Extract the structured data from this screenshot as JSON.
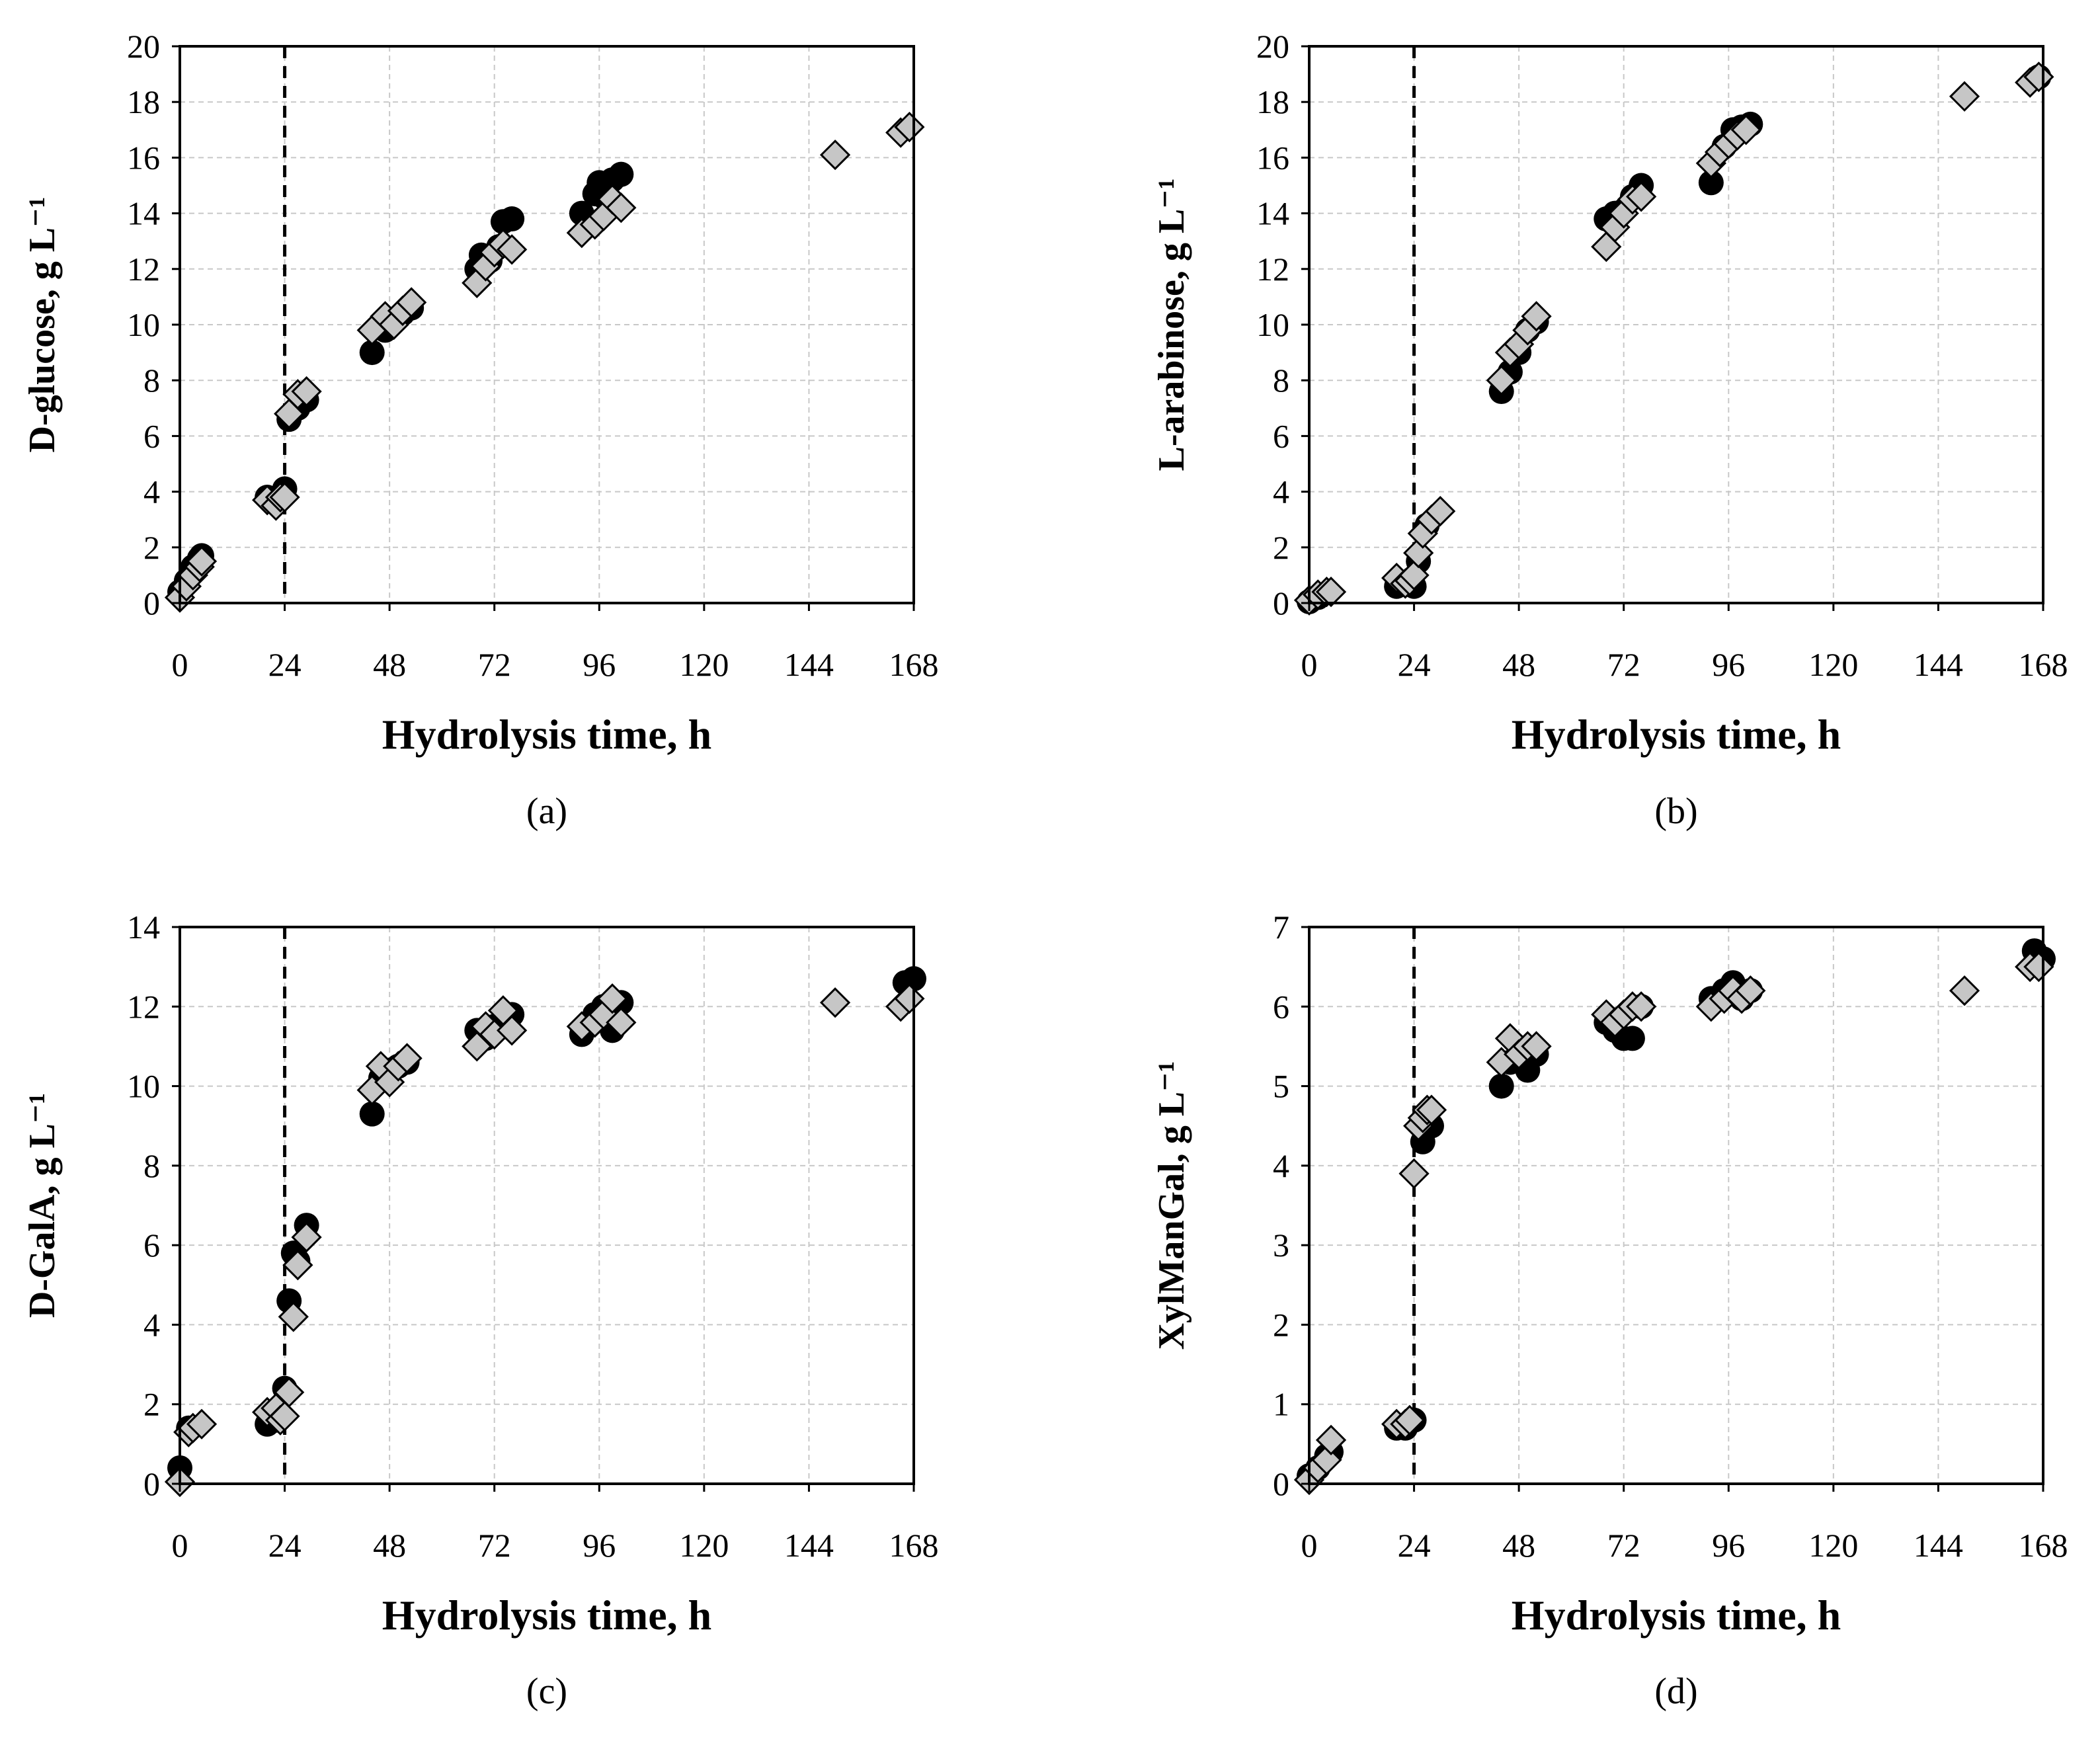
{
  "figure": {
    "x_ticks": [
      0,
      24,
      48,
      72,
      96,
      120,
      144,
      168
    ],
    "reference_line_x": 24,
    "legend": null
  },
  "chart_data": [
    {
      "id": "a",
      "type": "scatter",
      "panel_label": "(a)",
      "xlabel": "Hydrolysis time, h",
      "ylabel": "D-glucose, g L⁻¹",
      "xlim": [
        0,
        168
      ],
      "ylim": [
        0,
        20
      ],
      "y_ticks": [
        0,
        2,
        4,
        6,
        8,
        10,
        12,
        14,
        16,
        18,
        20
      ],
      "series": [
        {
          "name": "filled circles",
          "marker": "circle",
          "x": [
            0,
            1.5,
            3,
            4.5,
            5,
            20,
            22,
            24,
            25,
            27,
            29,
            44,
            47,
            49,
            51,
            53,
            68,
            69,
            71,
            73,
            74,
            76,
            92,
            95,
            96,
            97,
            99,
            101
          ],
          "y": [
            0.4,
            0.8,
            1.3,
            1.6,
            1.7,
            3.8,
            3.6,
            4.1,
            6.6,
            7.0,
            7.3,
            9.0,
            9.8,
            10.2,
            10.4,
            10.6,
            12.0,
            12.5,
            12.3,
            12.8,
            13.7,
            13.8,
            14.0,
            14.7,
            15.1,
            14.6,
            15.2,
            15.4
          ]
        },
        {
          "name": "grey diamonds",
          "marker": "diamond",
          "x": [
            0,
            1.5,
            3,
            4.5,
            5,
            20,
            22,
            23,
            24,
            25,
            27,
            29,
            44,
            47,
            49,
            51,
            53,
            68,
            70,
            72,
            74,
            76,
            92,
            95,
            97,
            99,
            101,
            150,
            165,
            167
          ],
          "y": [
            0.2,
            0.6,
            1.0,
            1.3,
            1.5,
            3.7,
            3.5,
            3.8,
            3.8,
            6.8,
            7.5,
            7.6,
            9.8,
            10.3,
            10.0,
            10.5,
            10.8,
            11.5,
            12.1,
            12.6,
            12.9,
            12.7,
            13.3,
            13.6,
            13.9,
            14.5,
            14.2,
            16.1,
            16.9,
            17.1
          ]
        }
      ]
    },
    {
      "id": "b",
      "type": "scatter",
      "panel_label": "(b)",
      "xlabel": "Hydrolysis time, h",
      "ylabel": "L-arabinose, g L⁻¹",
      "xlim": [
        0,
        168
      ],
      "ylim": [
        0,
        20
      ],
      "y_ticks": [
        0,
        2,
        4,
        6,
        8,
        10,
        12,
        14,
        16,
        18,
        20
      ],
      "series": [
        {
          "name": "filled circles",
          "marker": "circle",
          "x": [
            0,
            2,
            20,
            22,
            24,
            25,
            27,
            44,
            46,
            48,
            50,
            52,
            68,
            70,
            72,
            74,
            76,
            92,
            95,
            97,
            99,
            101,
            167
          ],
          "y": [
            0.05,
            0.2,
            0.6,
            0.7,
            0.6,
            1.5,
            2.8,
            7.6,
            8.3,
            9.0,
            9.8,
            10.1,
            13.8,
            14.0,
            14.1,
            14.6,
            15.0,
            15.1,
            16.4,
            17.0,
            17.1,
            17.2,
            18.9
          ]
        },
        {
          "name": "grey diamonds",
          "marker": "diamond",
          "x": [
            0,
            2,
            4,
            5,
            20,
            22,
            23,
            24,
            25,
            26,
            28,
            30,
            44,
            46,
            48,
            50,
            52,
            68,
            70,
            72,
            74,
            76,
            92,
            94,
            96,
            98,
            100,
            150,
            165,
            167
          ],
          "y": [
            0.1,
            0.3,
            0.4,
            0.4,
            0.9,
            0.7,
            0.8,
            1.0,
            1.8,
            2.5,
            3.0,
            3.3,
            8.0,
            9.0,
            9.3,
            9.8,
            10.3,
            12.8,
            13.5,
            14.0,
            14.5,
            14.6,
            15.8,
            16.2,
            16.5,
            16.8,
            17.0,
            18.2,
            18.7,
            18.9
          ]
        }
      ]
    },
    {
      "id": "c",
      "type": "scatter",
      "panel_label": "(c)",
      "xlabel": "Hydrolysis time, h",
      "ylabel": "D-GalA, g L⁻¹",
      "xlim": [
        0,
        168
      ],
      "ylim": [
        0,
        14
      ],
      "y_ticks": [
        0,
        2,
        4,
        6,
        8,
        10,
        12,
        14
      ],
      "series": [
        {
          "name": "filled circles",
          "marker": "circle",
          "x": [
            0,
            2,
            20,
            22,
            24,
            25,
            26,
            27,
            29,
            44,
            46,
            48,
            50,
            52,
            68,
            70,
            72,
            74,
            76,
            92,
            95,
            97,
            99,
            100,
            101,
            166,
            168
          ],
          "y": [
            0.4,
            1.4,
            1.5,
            1.6,
            2.4,
            4.6,
            5.8,
            5.6,
            6.5,
            9.3,
            10.2,
            10.4,
            10.5,
            10.6,
            11.4,
            11.2,
            11.5,
            11.6,
            11.8,
            11.3,
            11.8,
            12.0,
            11.4,
            12.0,
            12.1,
            12.6,
            12.7
          ]
        },
        {
          "name": "grey diamonds",
          "marker": "diamond",
          "x": [
            0,
            2,
            3,
            5,
            20,
            22,
            23,
            24,
            25,
            26,
            27,
            29,
            44,
            46,
            48,
            50,
            52,
            68,
            70,
            72,
            74,
            76,
            92,
            95,
            97,
            99,
            101,
            150,
            165,
            167
          ],
          "y": [
            0.05,
            1.3,
            1.4,
            1.5,
            1.8,
            1.9,
            1.6,
            1.7,
            2.3,
            4.2,
            5.5,
            6.2,
            9.9,
            10.5,
            10.1,
            10.5,
            10.7,
            11.0,
            11.5,
            11.3,
            11.9,
            11.4,
            11.5,
            11.6,
            11.8,
            12.2,
            11.6,
            12.1,
            12.0,
            12.2
          ]
        }
      ]
    },
    {
      "id": "d",
      "type": "scatter",
      "panel_label": "(d)",
      "xlabel": "Hydrolysis time, h",
      "ylabel": "XylManGal, g L⁻¹",
      "xlim": [
        0,
        168
      ],
      "ylim": [
        0,
        7
      ],
      "y_ticks": [
        0,
        1,
        2,
        3,
        4,
        5,
        6,
        7
      ],
      "series": [
        {
          "name": "filled circles",
          "marker": "circle",
          "x": [
            0,
            2,
            4,
            5,
            20,
            22,
            24,
            26,
            28,
            44,
            46,
            48,
            50,
            52,
            68,
            70,
            72,
            74,
            76,
            92,
            95,
            97,
            99,
            101,
            166,
            168
          ],
          "y": [
            0.1,
            0.2,
            0.35,
            0.4,
            0.7,
            0.7,
            0.8,
            4.3,
            4.5,
            5.0,
            5.3,
            5.4,
            5.2,
            5.4,
            5.8,
            5.7,
            5.6,
            5.6,
            6.0,
            6.1,
            6.2,
            6.3,
            6.1,
            6.2,
            6.7,
            6.6
          ]
        },
        {
          "name": "grey diamonds",
          "marker": "diamond",
          "x": [
            0,
            2,
            4,
            5,
            20,
            22,
            23,
            24,
            25,
            26,
            27,
            28,
            44,
            46,
            48,
            50,
            52,
            68,
            70,
            72,
            74,
            76,
            92,
            95,
            97,
            99,
            101,
            150,
            165,
            167
          ],
          "y": [
            0.05,
            0.2,
            0.3,
            0.55,
            0.75,
            0.75,
            0.8,
            3.9,
            4.5,
            4.6,
            4.7,
            4.7,
            5.3,
            5.6,
            5.4,
            5.5,
            5.5,
            5.9,
            5.8,
            5.9,
            6.0,
            6.0,
            6.0,
            6.1,
            6.2,
            6.1,
            6.2,
            6.2,
            6.5,
            6.5
          ]
        }
      ]
    }
  ]
}
